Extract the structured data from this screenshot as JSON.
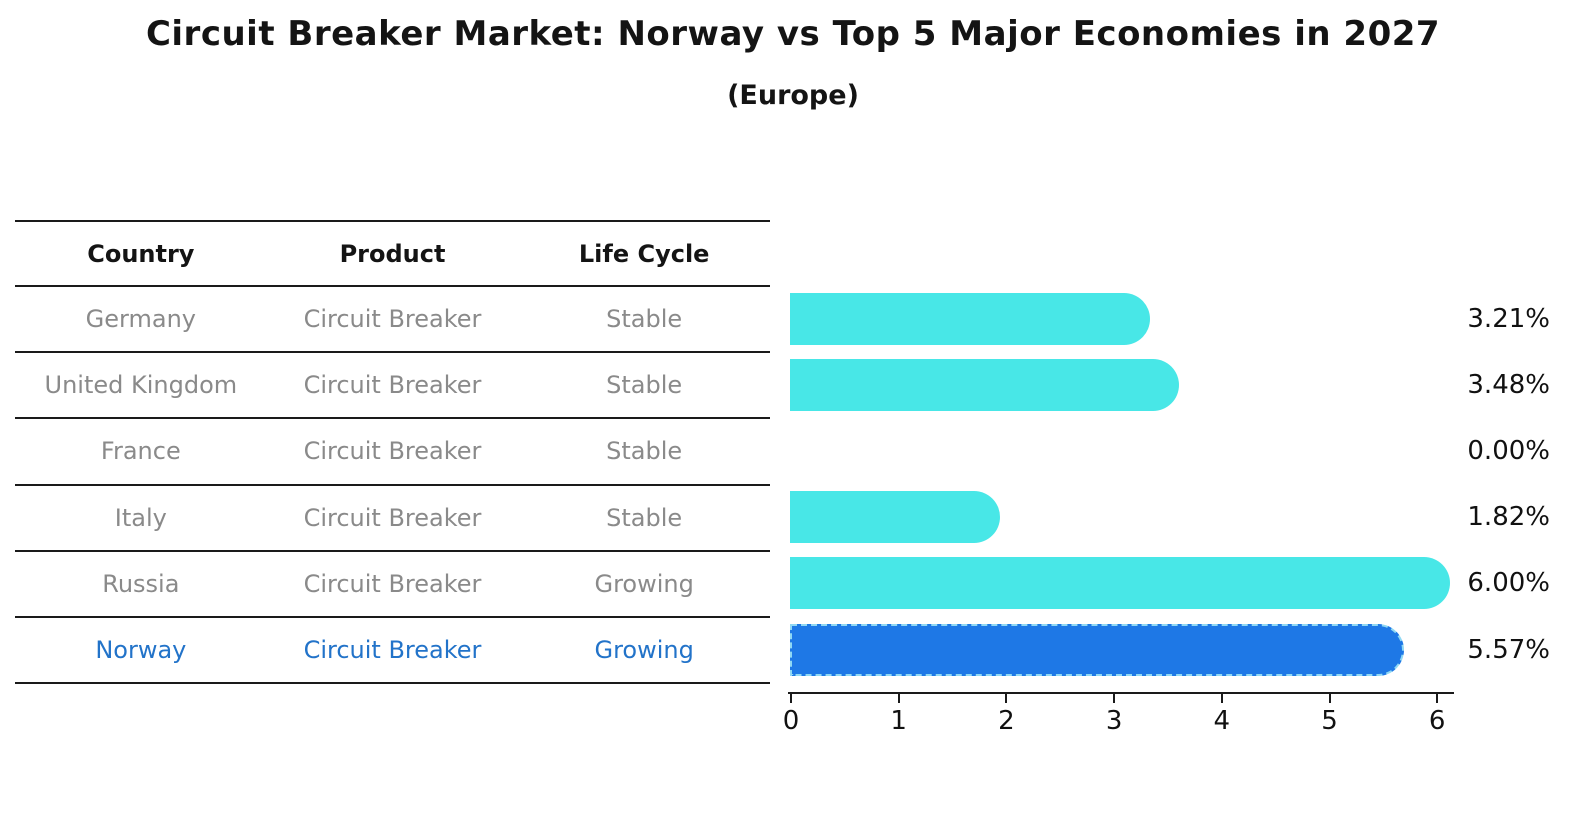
{
  "title": "Circuit Breaker Market: Norway vs Top 5 Major Economies in 2027",
  "subtitle": "(Europe)",
  "table": {
    "headers": [
      "Country",
      "Product",
      "Life Cycle"
    ],
    "rows": [
      {
        "country": "Germany",
        "product": "Circuit Breaker",
        "life_cycle": "Stable",
        "highlighted": false
      },
      {
        "country": "United Kingdom",
        "product": "Circuit Breaker",
        "life_cycle": "Stable",
        "highlighted": false
      },
      {
        "country": "France",
        "product": "Circuit Breaker",
        "life_cycle": "Stable",
        "highlighted": false
      },
      {
        "country": "Italy",
        "product": "Circuit Breaker",
        "life_cycle": "Stable",
        "highlighted": false
      },
      {
        "country": "Russia",
        "product": "Circuit Breaker",
        "life_cycle": "Growing",
        "highlighted": false
      },
      {
        "country": "Norway",
        "product": "Circuit Breaker",
        "life_cycle": "Growing",
        "highlighted": true
      }
    ]
  },
  "chart_data": {
    "type": "bar",
    "orientation": "horizontal",
    "title": "Circuit Breaker Market: Norway vs Top 5 Major Economies in 2027",
    "subtitle": "(Europe)",
    "categories": [
      "Germany",
      "United Kingdom",
      "France",
      "Italy",
      "Russia",
      "Norway"
    ],
    "values": [
      3.21,
      3.48,
      0.0,
      1.82,
      6.0,
      5.57
    ],
    "value_labels": [
      "3.21%",
      "3.48%",
      "0.00%",
      "1.82%",
      "6.00%",
      "5.57%"
    ],
    "xlim": [
      0,
      6
    ],
    "x_ticks": [
      "0",
      "1",
      "2",
      "3",
      "4",
      "5",
      "6"
    ],
    "grid": false,
    "legend": "none",
    "highlight_index": 5,
    "bar_color": "#48e7e7",
    "highlight_bar_color": "#1e78e6",
    "highlight_border_color": "#8fd8f4",
    "text_color": "#111111",
    "muted_text_color": "#8a8a8a",
    "highlight_text_color": "#2273c9"
  }
}
